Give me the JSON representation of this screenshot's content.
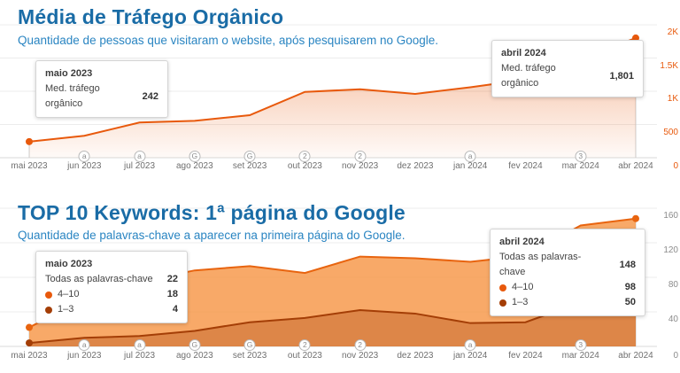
{
  "chart_data": [
    {
      "id": "traffic",
      "type": "area",
      "title": "Média de Tráfego Orgânico",
      "subtitle": "Quantidade de pessoas que visitaram o website, após pesquisarem no Google.",
      "x": [
        "mai 2023",
        "jun 2023",
        "jul 2023",
        "ago 2023",
        "set 2023",
        "out 2023",
        "nov 2023",
        "dez 2023",
        "jan 2024",
        "fev 2024",
        "mar 2024",
        "abr 2024"
      ],
      "x_annotations": [
        null,
        "a",
        "a",
        "G",
        "G",
        "2",
        "2",
        null,
        "a",
        null,
        "3",
        null
      ],
      "series": [
        {
          "name": "Med. tráfego orgânico",
          "color": "#e8590c",
          "values": [
            242,
            330,
            530,
            555,
            640,
            990,
            1030,
            960,
            1060,
            1175,
            1490,
            1801
          ]
        }
      ],
      "ylim": [
        0,
        2000
      ],
      "yticks": [
        {
          "value": 0,
          "label": "0"
        },
        {
          "value": 500,
          "label": "500"
        },
        {
          "value": 1000,
          "label": "1K"
        },
        {
          "value": 1500,
          "label": "1.5K"
        },
        {
          "value": 2000,
          "label": "2K"
        }
      ],
      "ytick_color": "#e8590c",
      "grid": true,
      "legend_position": "none"
    },
    {
      "id": "keywords",
      "type": "stacked-area",
      "title": "TOP 10 Keywords: 1ª página do Google",
      "subtitle": "Quantidade de palavras-chave a aparecer na primeira página do Google.",
      "x": [
        "mai 2023",
        "jun 2023",
        "jul 2023",
        "ago 2023",
        "set 2023",
        "out 2023",
        "nov 2023",
        "dez 2023",
        "jan 2024",
        "fev 2024",
        "mar 2024",
        "abr 2024"
      ],
      "x_annotations": [
        null,
        "a",
        "a",
        "G",
        "G",
        "2",
        "2",
        null,
        "a",
        null,
        "3",
        null
      ],
      "series": [
        {
          "name": "Todas as palavras-chave",
          "color": "#e8640f",
          "values": [
            22,
            55,
            75,
            88,
            93,
            85,
            104,
            102,
            98,
            105,
            140,
            148
          ]
        },
        {
          "name": "4–10",
          "color": "#e8590c",
          "values": [
            18,
            45,
            63,
            70,
            65,
            52,
            62,
            64,
            71,
            77,
            89,
            98
          ]
        },
        {
          "name": "1–3",
          "color": "#a43e06",
          "values": [
            4,
            10,
            12,
            18,
            28,
            33,
            42,
            38,
            27,
            28,
            51,
            50
          ]
        }
      ],
      "ylim": [
        0,
        160
      ],
      "yticks": [
        {
          "value": 0,
          "label": "0"
        },
        {
          "value": 40,
          "label": "40"
        },
        {
          "value": 80,
          "label": "80"
        },
        {
          "value": 120,
          "label": "120"
        },
        {
          "value": 160,
          "label": "160"
        }
      ],
      "ytick_color": "#8c8c8c",
      "grid": true,
      "legend_position": "none"
    }
  ],
  "tooltips": {
    "traffic_left": {
      "title": "maio 2023",
      "rows": [
        {
          "label": "Med. tráfego orgânico",
          "value": "242"
        }
      ]
    },
    "traffic_right": {
      "title": "abril 2024",
      "rows": [
        {
          "label": "Med. tráfego orgânico",
          "value": "1,801"
        }
      ]
    },
    "keywords_left": {
      "title": "maio 2023",
      "rows": [
        {
          "label": "Todas as palavras-chave",
          "value": "22"
        },
        {
          "label": "4–10",
          "value": "18",
          "dot_color": "#e8590c"
        },
        {
          "label": "1–3",
          "value": "4",
          "dot_color": "#a43e06"
        }
      ]
    },
    "keywords_right": {
      "title": "abril 2024",
      "rows": [
        {
          "label": "Todas as palavras-chave",
          "value": "148"
        },
        {
          "label": "4–10",
          "value": "98",
          "dot_color": "#e8590c"
        },
        {
          "label": "1–3",
          "value": "50",
          "dot_color": "#a43e06"
        }
      ]
    }
  },
  "colors": {
    "title_blue": "#1a6ca6",
    "subtitle_blue": "#2a85c2",
    "orange": "#e8590c",
    "dark_orange": "#a43e06"
  }
}
